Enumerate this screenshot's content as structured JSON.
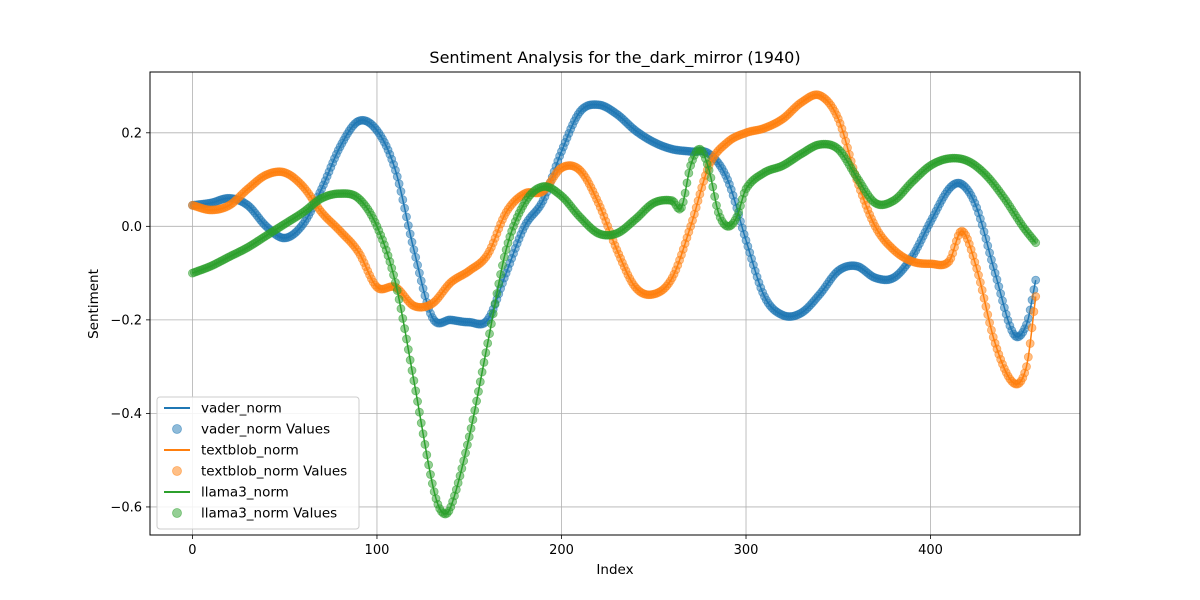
{
  "chart_data": {
    "type": "line",
    "title": "Sentiment Analysis for the_dark_mirror (1940)",
    "xlabel": "Index",
    "ylabel": "Sentiment",
    "xlim": [
      -23,
      481
    ],
    "ylim": [
      -0.66,
      0.33
    ],
    "x_ticks": [
      0,
      100,
      200,
      300,
      400
    ],
    "x_tick_labels": [
      "0",
      "100",
      "200",
      "300",
      "400"
    ],
    "y_ticks": [
      -0.6,
      -0.4,
      -0.2,
      0.0,
      0.2
    ],
    "y_tick_labels": [
      "−0.6",
      "−0.4",
      "−0.2",
      "0.0",
      "0.2"
    ],
    "grid": true,
    "legend_position": "lower-left",
    "x_max_index": 457,
    "legend": [
      {
        "label": "vader_norm",
        "kind": "line",
        "color": "#1f77b4"
      },
      {
        "label": "vader_norm Values",
        "kind": "marker",
        "color": "#1f77b4"
      },
      {
        "label": "textblob_norm",
        "kind": "line",
        "color": "#ff7f0e"
      },
      {
        "label": "textblob_norm Values",
        "kind": "marker",
        "color": "#ff7f0e"
      },
      {
        "label": "llama3_norm",
        "kind": "line",
        "color": "#2ca02c"
      },
      {
        "label": "llama3_norm Values",
        "kind": "marker",
        "color": "#2ca02c"
      }
    ],
    "series": [
      {
        "name": "vader_norm",
        "color": "#1f77b4",
        "points": [
          [
            0,
            0.045
          ],
          [
            10,
            0.05
          ],
          [
            20,
            0.06
          ],
          [
            30,
            0.045
          ],
          [
            40,
            0.0
          ],
          [
            50,
            -0.025
          ],
          [
            60,
            0.005
          ],
          [
            70,
            0.08
          ],
          [
            80,
            0.17
          ],
          [
            90,
            0.225
          ],
          [
            100,
            0.205
          ],
          [
            110,
            0.12
          ],
          [
            120,
            -0.05
          ],
          [
            130,
            -0.195
          ],
          [
            140,
            -0.2
          ],
          [
            150,
            -0.205
          ],
          [
            160,
            -0.2
          ],
          [
            170,
            -0.1
          ],
          [
            180,
            0.0
          ],
          [
            190,
            0.055
          ],
          [
            200,
            0.16
          ],
          [
            210,
            0.245
          ],
          [
            220,
            0.26
          ],
          [
            230,
            0.24
          ],
          [
            240,
            0.205
          ],
          [
            250,
            0.18
          ],
          [
            260,
            0.165
          ],
          [
            270,
            0.16
          ],
          [
            280,
            0.155
          ],
          [
            290,
            0.1
          ],
          [
            300,
            -0.03
          ],
          [
            310,
            -0.15
          ],
          [
            320,
            -0.19
          ],
          [
            330,
            -0.185
          ],
          [
            340,
            -0.145
          ],
          [
            350,
            -0.095
          ],
          [
            360,
            -0.085
          ],
          [
            370,
            -0.11
          ],
          [
            380,
            -0.11
          ],
          [
            390,
            -0.065
          ],
          [
            400,
            0.01
          ],
          [
            410,
            0.08
          ],
          [
            417,
            0.09
          ],
          [
            425,
            0.04
          ],
          [
            435,
            -0.1
          ],
          [
            445,
            -0.23
          ],
          [
            452,
            -0.21
          ],
          [
            457,
            -0.115
          ]
        ]
      },
      {
        "name": "textblob_norm",
        "color": "#ff7f0e",
        "points": [
          [
            0,
            0.045
          ],
          [
            10,
            0.035
          ],
          [
            20,
            0.045
          ],
          [
            30,
            0.08
          ],
          [
            40,
            0.11
          ],
          [
            50,
            0.115
          ],
          [
            60,
            0.085
          ],
          [
            70,
            0.03
          ],
          [
            80,
            -0.01
          ],
          [
            90,
            -0.055
          ],
          [
            100,
            -0.13
          ],
          [
            110,
            -0.13
          ],
          [
            120,
            -0.17
          ],
          [
            130,
            -0.165
          ],
          [
            140,
            -0.12
          ],
          [
            150,
            -0.095
          ],
          [
            160,
            -0.06
          ],
          [
            170,
            0.03
          ],
          [
            180,
            0.07
          ],
          [
            190,
            0.075
          ],
          [
            200,
            0.125
          ],
          [
            210,
            0.12
          ],
          [
            220,
            0.05
          ],
          [
            230,
            -0.05
          ],
          [
            240,
            -0.13
          ],
          [
            250,
            -0.145
          ],
          [
            260,
            -0.11
          ],
          [
            270,
            0.0
          ],
          [
            280,
            0.13
          ],
          [
            290,
            0.18
          ],
          [
            300,
            0.2
          ],
          [
            310,
            0.21
          ],
          [
            320,
            0.23
          ],
          [
            330,
            0.265
          ],
          [
            340,
            0.28
          ],
          [
            350,
            0.23
          ],
          [
            360,
            0.1
          ],
          [
            370,
            0.0
          ],
          [
            380,
            -0.05
          ],
          [
            390,
            -0.075
          ],
          [
            400,
            -0.08
          ],
          [
            410,
            -0.075
          ],
          [
            417,
            -0.01
          ],
          [
            425,
            -0.09
          ],
          [
            435,
            -0.25
          ],
          [
            445,
            -0.335
          ],
          [
            452,
            -0.3
          ],
          [
            457,
            -0.15
          ]
        ]
      },
      {
        "name": "llama3_norm",
        "color": "#2ca02c",
        "points": [
          [
            0,
            -0.1
          ],
          [
            10,
            -0.085
          ],
          [
            20,
            -0.065
          ],
          [
            30,
            -0.045
          ],
          [
            40,
            -0.02
          ],
          [
            50,
            0.005
          ],
          [
            60,
            0.03
          ],
          [
            70,
            0.06
          ],
          [
            80,
            0.07
          ],
          [
            90,
            0.06
          ],
          [
            100,
            0.0
          ],
          [
            110,
            -0.12
          ],
          [
            120,
            -0.33
          ],
          [
            130,
            -0.55
          ],
          [
            135,
            -0.61
          ],
          [
            140,
            -0.6
          ],
          [
            150,
            -0.45
          ],
          [
            160,
            -0.25
          ],
          [
            170,
            -0.05
          ],
          [
            180,
            0.05
          ],
          [
            190,
            0.085
          ],
          [
            200,
            0.065
          ],
          [
            210,
            0.02
          ],
          [
            220,
            -0.015
          ],
          [
            230,
            -0.015
          ],
          [
            240,
            0.015
          ],
          [
            250,
            0.05
          ],
          [
            260,
            0.055
          ],
          [
            265,
            0.04
          ],
          [
            270,
            0.13
          ],
          [
            275,
            0.165
          ],
          [
            280,
            0.12
          ],
          [
            285,
            0.03
          ],
          [
            290,
            0.0
          ],
          [
            295,
            0.02
          ],
          [
            300,
            0.08
          ],
          [
            310,
            0.115
          ],
          [
            320,
            0.13
          ],
          [
            330,
            0.155
          ],
          [
            340,
            0.175
          ],
          [
            350,
            0.165
          ],
          [
            360,
            0.105
          ],
          [
            370,
            0.05
          ],
          [
            380,
            0.055
          ],
          [
            390,
            0.095
          ],
          [
            400,
            0.13
          ],
          [
            410,
            0.145
          ],
          [
            420,
            0.14
          ],
          [
            430,
            0.11
          ],
          [
            440,
            0.06
          ],
          [
            450,
            0.0
          ],
          [
            457,
            -0.035
          ]
        ]
      }
    ]
  }
}
